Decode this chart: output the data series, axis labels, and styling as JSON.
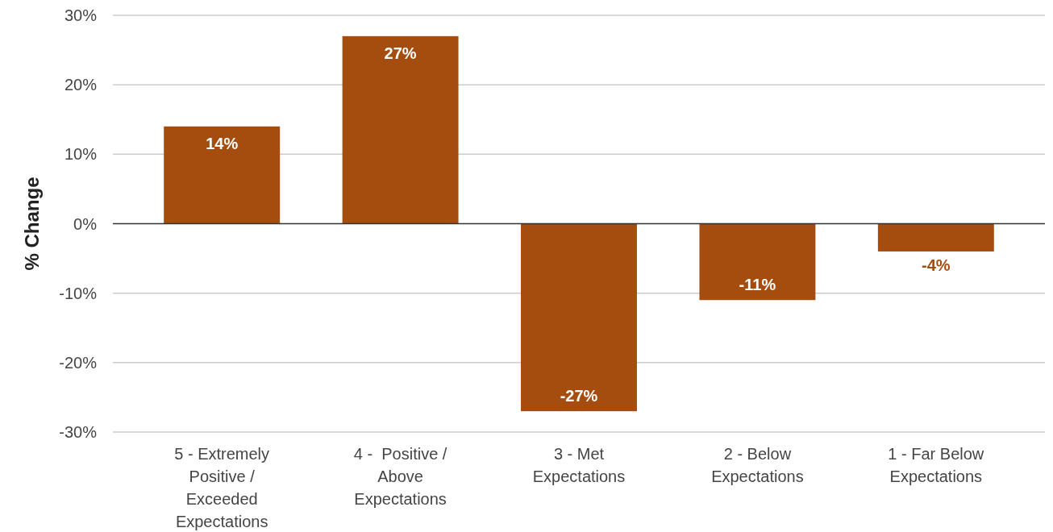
{
  "chart_data": {
    "type": "bar",
    "ylabel": "% Change",
    "categories": [
      "5 - Extremely Positive / Exceeded Expectations",
      "4 -  Positive / Above Expectations",
      "3 - Met Expectations",
      "2 - Below Expectations",
      "1 - Far Below Expectations"
    ],
    "values": [
      14,
      27,
      -27,
      -11,
      -4
    ],
    "value_labels": [
      "14%",
      "27%",
      "-27%",
      "-11%",
      "-4%"
    ],
    "color": "#a54c0f",
    "ylim": [
      -30,
      30
    ],
    "yticks": [
      {
        "value": 30,
        "label": "30%"
      },
      {
        "value": 20,
        "label": "20%"
      },
      {
        "value": 10,
        "label": "10%"
      },
      {
        "value": 0,
        "label": "0%"
      },
      {
        "value": -10,
        "label": "-10%"
      },
      {
        "value": -20,
        "label": "-20%"
      },
      {
        "value": -30,
        "label": "-30%"
      }
    ],
    "grid": "y"
  }
}
